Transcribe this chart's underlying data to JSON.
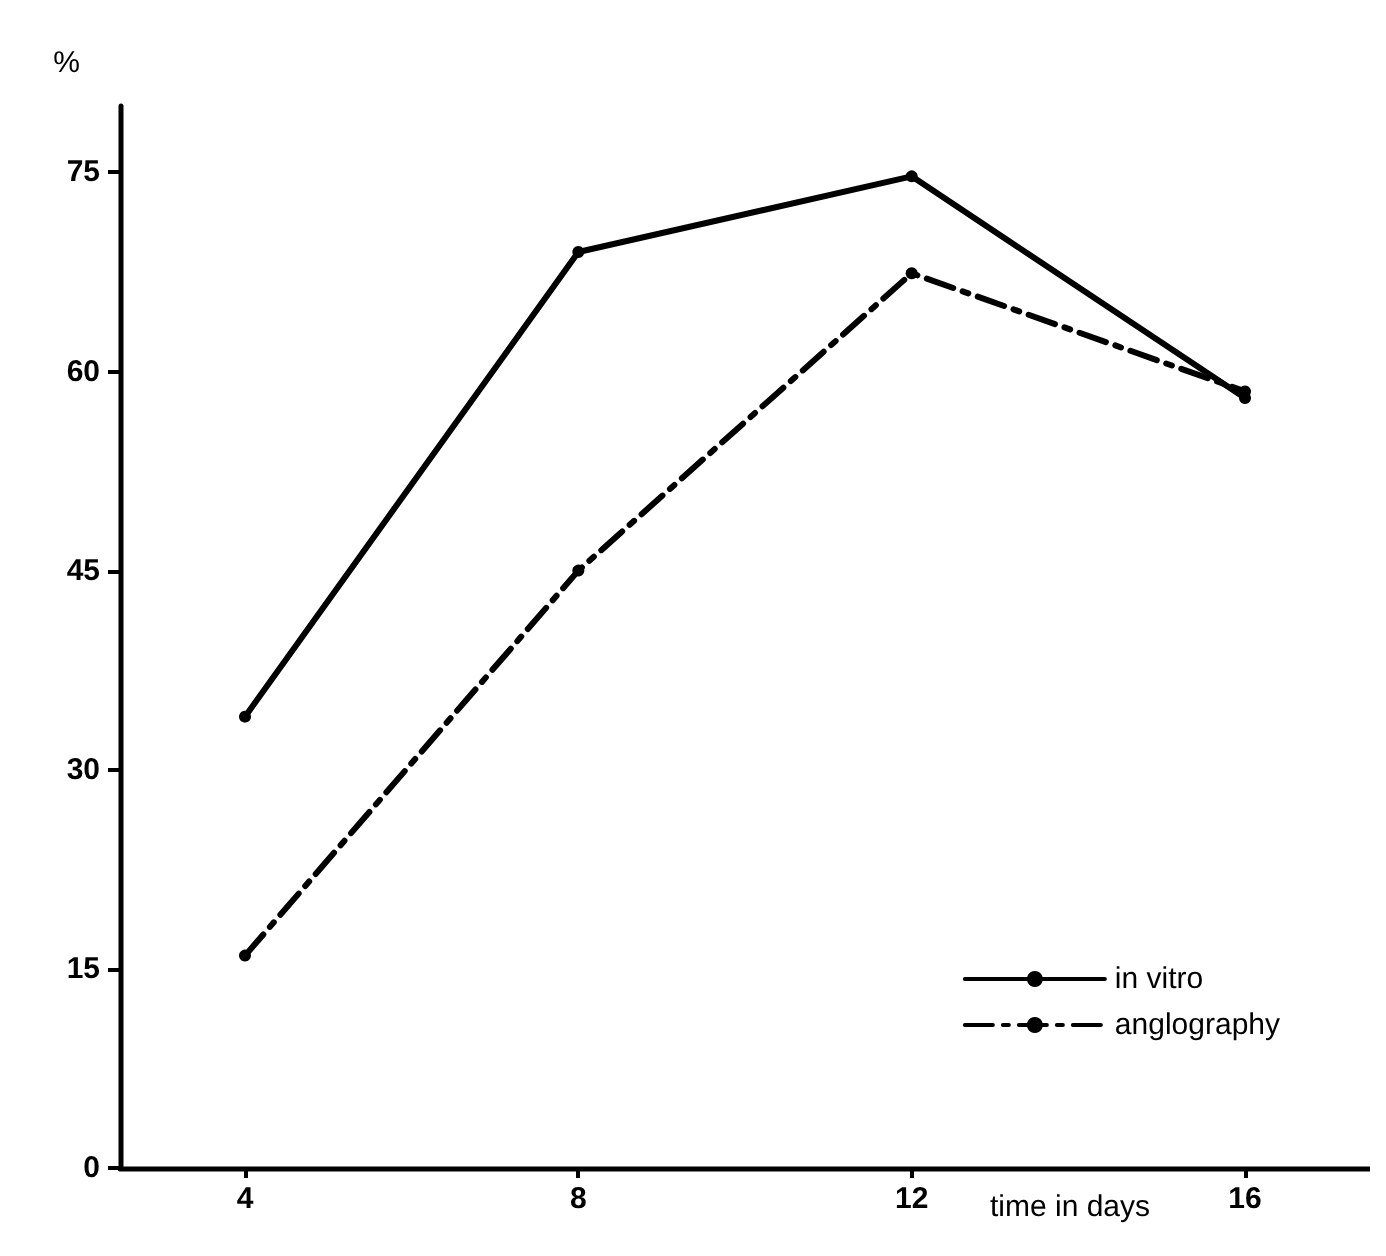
{
  "chart_data": {
    "type": "line",
    "ylabel": "%",
    "xlabel": "time in days",
    "x": [
      4,
      8,
      12,
      16
    ],
    "series": [
      {
        "name": "in vitro",
        "color": "#000000",
        "line_style": "solid",
        "values": [
          34,
          69,
          74.7,
          58
        ]
      },
      {
        "name": "anglography",
        "color": "#000000",
        "line_style": "dashdot",
        "values": [
          16,
          45,
          67.4,
          58.5
        ]
      }
    ],
    "xlim": [
      2.5,
      17.5
    ],
    "xticks": [
      4,
      8,
      12,
      16
    ],
    "ylim": [
      0,
      80
    ],
    "yticks": [
      0,
      15,
      30,
      45,
      60,
      75
    ],
    "grid": false,
    "legend": "bottom right",
    "marker": "circle"
  }
}
